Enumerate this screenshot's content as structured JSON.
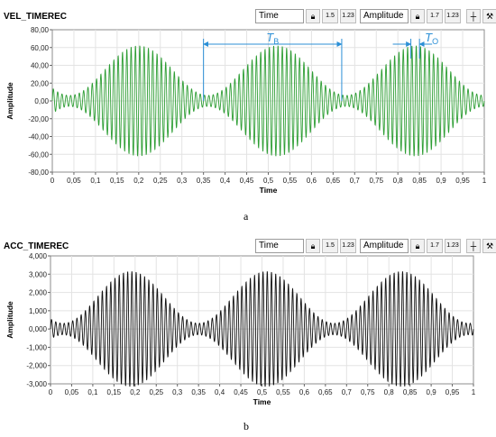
{
  "figure": {
    "caption_a": "a",
    "caption_b": "b"
  },
  "toolbar": {
    "x_field": "Time",
    "y_field": "Amplitude",
    "zoom_icon": "magnifier-icon",
    "x_format": "1.23",
    "x_scale": "1.5",
    "y_format": "1.23",
    "y_scale": "1.7",
    "cursor_icon": "crosshair-icon",
    "zoom_tool_icon": "zoom-tool-icon",
    "pan_icon": "hand-icon"
  },
  "charts": [
    {
      "title": "VEL_TIMEREC",
      "xlabel": "Time",
      "ylabel": "Amplitude",
      "color": "#2e9e34",
      "annotation_color": "#2b8fd6",
      "annotations": {
        "tb": "T",
        "tb_sub": "B",
        "to": "T",
        "to_sub": "O"
      }
    },
    {
      "title": "ACC_TIMEREC",
      "xlabel": "Time",
      "ylabel": "Amplitude",
      "color": "#111111"
    }
  ],
  "chart_data": [
    {
      "type": "line",
      "x_ticks": [
        "0",
        "0,05",
        "0,1",
        "0,15",
        "0,2",
        "0,25",
        "0,3",
        "0,35",
        "0,4",
        "0,45",
        "0,5",
        "0,55",
        "0,6",
        "0,65",
        "0,7",
        "0,75",
        "0,8",
        "0,85",
        "0,9",
        "0,95",
        "1"
      ],
      "y_ticks": [
        "80,00",
        "60,00",
        "40,00",
        "20,00",
        "0,00",
        "-20,00",
        "-40,00",
        "-60,00",
        "-80,00"
      ],
      "xlim": [
        0,
        1
      ],
      "ylim": [
        -80,
        80
      ],
      "grid": true,
      "signal": {
        "amplitude": 62,
        "carrier_cycles": 100,
        "beat_period": 0.32,
        "envelope_min": 0.1,
        "first_peak": 0.2
      },
      "beat_period_marker": [
        0.35,
        0.67
      ],
      "carrier_period_marker": [
        0.83,
        0.85
      ]
    },
    {
      "type": "line",
      "x_ticks": [
        "0",
        "0,05",
        "0,1",
        "0,15",
        "0,2",
        "0,25",
        "0,3",
        "0,35",
        "0,4",
        "0,45",
        "0,5",
        "0,55",
        "0,6",
        "0,65",
        "0,7",
        "0,75",
        "0,8",
        "0,85",
        "0,9",
        "0,95",
        "1"
      ],
      "y_ticks": [
        "4,000",
        "3,000",
        "2,000",
        "1,000",
        "0,000",
        "-1,000",
        "-2,000",
        "-3,000"
      ],
      "xlim": [
        0,
        1
      ],
      "ylim": [
        -3,
        4
      ],
      "grid": true,
      "signal": {
        "amplitude": 3.15,
        "carrier_cycles": 100,
        "beat_period": 0.32,
        "envelope_min": 0.1,
        "first_peak": 0.19
      }
    }
  ]
}
